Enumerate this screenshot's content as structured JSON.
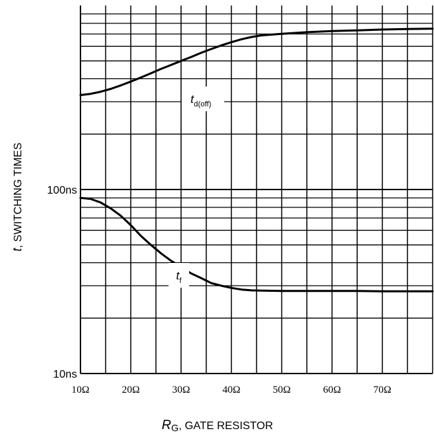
{
  "chart_data": {
    "type": "line",
    "title": "",
    "y_scale": "log",
    "ylim": [
      10,
      1000
    ],
    "xlim": [
      10,
      80
    ],
    "grid": true,
    "legend": "none",
    "y_tick_labels": [
      {
        "value": 100,
        "label": "100ns"
      },
      {
        "value": 10,
        "label": "10ns"
      }
    ],
    "x_tick_labels": [
      {
        "value": 10,
        "label": "10Ω"
      },
      {
        "value": 20,
        "label": "20Ω"
      },
      {
        "value": 30,
        "label": "30Ω"
      },
      {
        "value": 40,
        "label": "40Ω"
      },
      {
        "value": 50,
        "label": "50Ω"
      },
      {
        "value": 60,
        "label": "60Ω"
      },
      {
        "value": 70,
        "label": "70Ω"
      }
    ],
    "xlabel": {
      "italic": "R",
      "sub": "G",
      "rest": ", GATE RESISTOR"
    },
    "ylabel": {
      "italic": "t",
      "rest": ", SWITCHING TIMES"
    },
    "series": [
      {
        "name": "td(off)",
        "label_italic": "t",
        "label_sub": "d(off)",
        "color": "#000000",
        "x": [
          10,
          12,
          14,
          16,
          18,
          20,
          22,
          24,
          26,
          28,
          30,
          32,
          34,
          36,
          38,
          40,
          42,
          44,
          46,
          50,
          55,
          60,
          65,
          70,
          75,
          80
        ],
        "y": [
          326,
          331,
          340,
          352,
          368,
          386,
          406,
          428,
          452,
          475,
          500,
          525,
          553,
          580,
          607,
          632,
          655,
          674,
          688,
          702,
          716,
          726,
          733,
          740,
          745,
          748
        ]
      },
      {
        "name": "tf",
        "label_italic": "t",
        "label_sub": "f",
        "color": "#000000",
        "x": [
          10,
          12,
          14,
          16,
          18,
          20,
          22,
          24,
          26,
          28,
          30,
          32,
          34,
          36,
          38,
          40,
          42,
          44,
          46,
          50,
          55,
          60,
          65,
          70,
          75,
          80
        ],
        "y": [
          90,
          89,
          85,
          79,
          72,
          64,
          56,
          50,
          45,
          41,
          38,
          35,
          33,
          31,
          30,
          29.2,
          28.6,
          28.3,
          28.2,
          28.1,
          28.1,
          28.1,
          28.1,
          28,
          28,
          28
        ]
      }
    ]
  }
}
